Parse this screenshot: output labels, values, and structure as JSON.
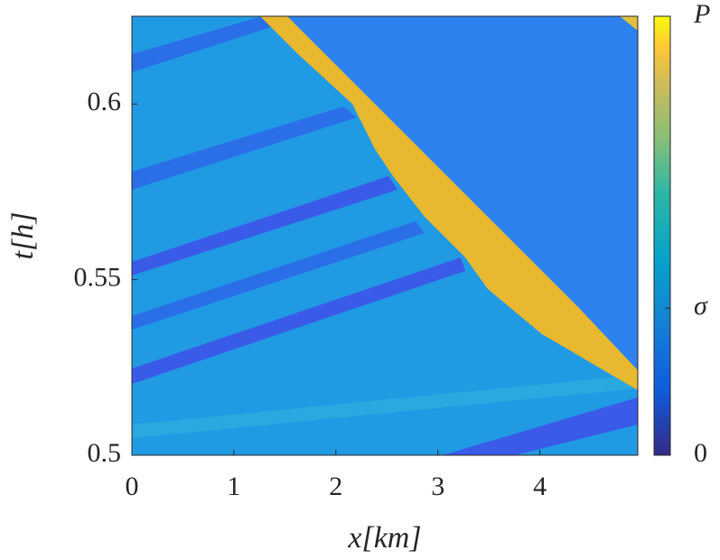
{
  "chart_data": {
    "type": "heatmap",
    "xlabel": "x[km]",
    "ylabel": "t[h]",
    "xlim": [
      0,
      4.96
    ],
    "xticks": [
      0,
      1,
      2,
      3,
      4
    ],
    "ylim": [
      0.5,
      0.625
    ],
    "yticks": [
      0.5,
      0.55,
      0.6
    ],
    "clim": [
      0,
      1
    ],
    "cticks": [
      0,
      {
        "value": 0.335,
        "label": "σ"
      },
      {
        "value": 1,
        "label": "P"
      }
    ]
  }
}
